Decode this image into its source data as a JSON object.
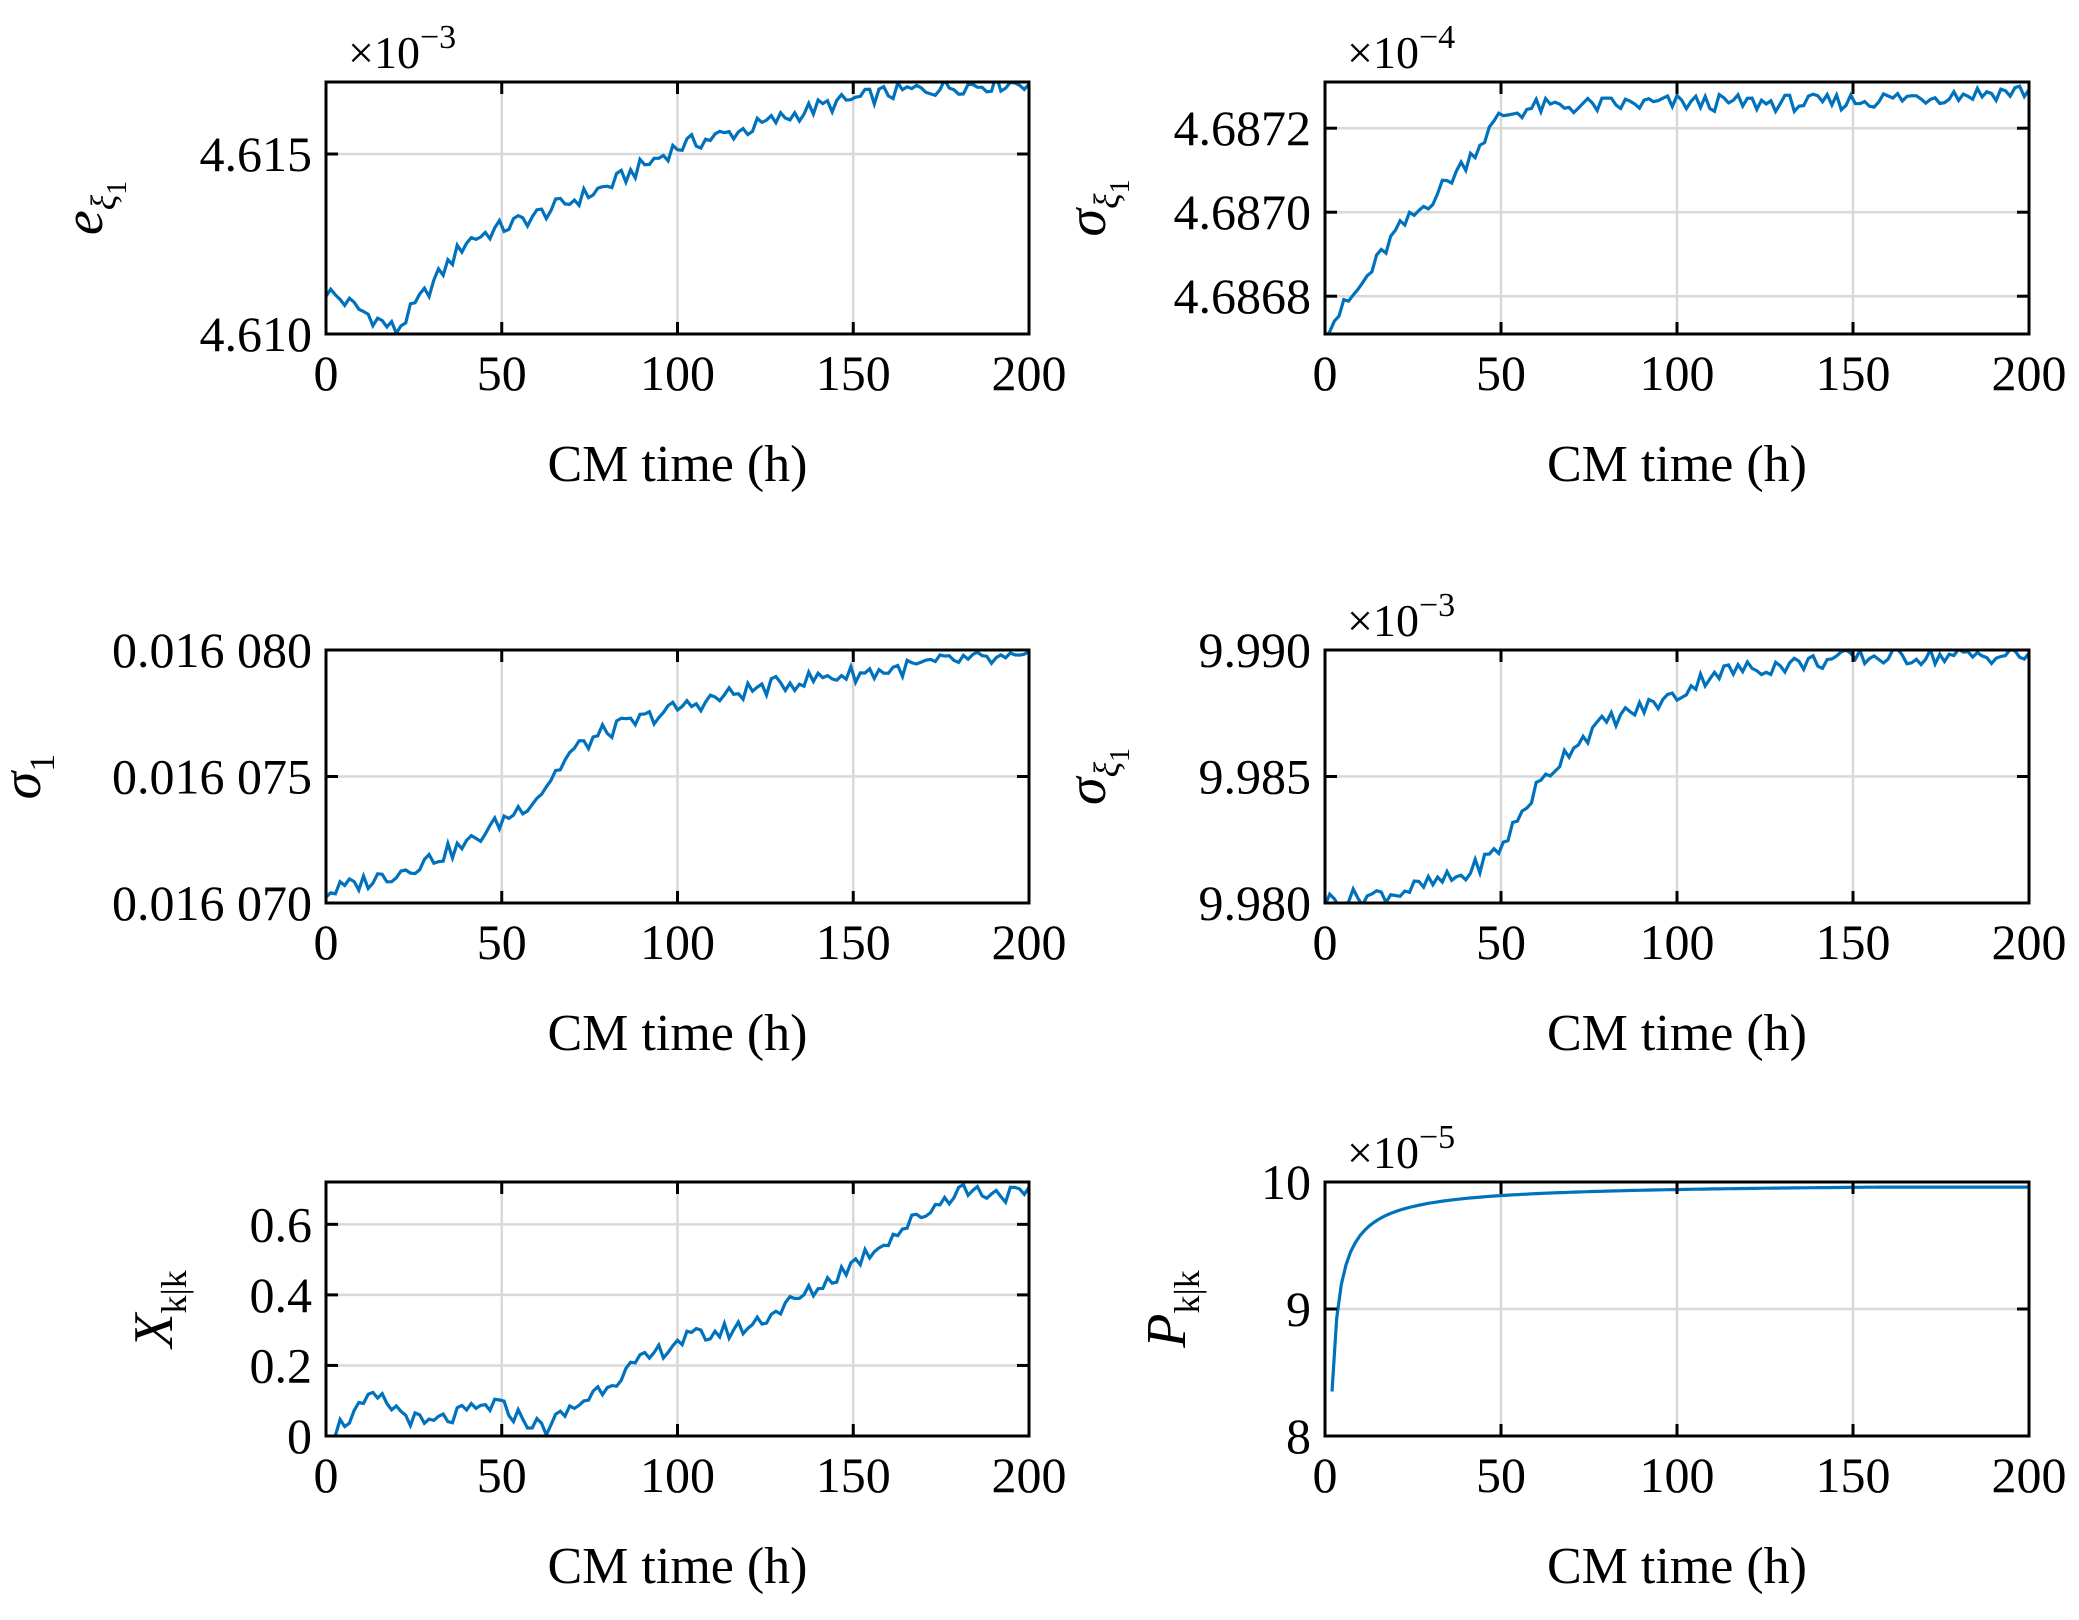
{
  "colors": {
    "line": "#0072BD",
    "grid": "#d9d9d9",
    "axis": "#000000"
  },
  "chart_data": [
    {
      "id": "p1",
      "type": "line",
      "row": 0,
      "col": 0,
      "ylabel": "e",
      "ylabel_sub": "ξ",
      "ylabel_subsub": "1",
      "ylabel_italic": true,
      "exponent_base": "×10",
      "exponent_power": "−3",
      "xlabel": "CM time (h)",
      "xlim": [
        0,
        200
      ],
      "ylim": [
        4.61,
        4.617
      ],
      "xticks": [
        0,
        50,
        100,
        150,
        200
      ],
      "xtick_labels": [
        "0",
        "50",
        "100",
        "150",
        "200"
      ],
      "yticks": [
        4.61,
        4.615
      ],
      "ytick_labels": [
        "4.610",
        "4.615"
      ],
      "ygrid": [
        4.615
      ],
      "grid": true,
      "series": [
        {
          "x": [
            0,
            20,
            40,
            60,
            80,
            100,
            120,
            140,
            160,
            180,
            200
          ],
          "y": [
            4.6112,
            4.6101,
            4.6126,
            4.6133,
            4.6141,
            4.6152,
            4.6157,
            4.6163,
            4.6167,
            4.6169,
            4.617
          ]
        }
      ]
    },
    {
      "id": "p2",
      "type": "line",
      "row": 0,
      "col": 1,
      "ylabel": "σ",
      "ylabel_sub": "ξ",
      "ylabel_subsub": "1",
      "ylabel_italic": true,
      "exponent_base": "×10",
      "exponent_power": "−4",
      "xlabel": "CM time (h)",
      "xlim": [
        0,
        200
      ],
      "ylim": [
        4.68671,
        4.68731
      ],
      "xticks": [
        0,
        50,
        100,
        150,
        200
      ],
      "xtick_labels": [
        "0",
        "50",
        "100",
        "150",
        "200"
      ],
      "yticks": [
        4.6868,
        4.687,
        4.6872
      ],
      "ytick_labels": [
        "4.6868",
        "4.6870",
        "4.6872"
      ],
      "ygrid": [
        4.6868,
        4.687,
        4.6872
      ],
      "grid": true,
      "series": [
        {
          "x": [
            0,
            10,
            20,
            30,
            40,
            50,
            60,
            100,
            140,
            200
          ],
          "y": [
            4.68672,
            4.68682,
            4.68695,
            4.68703,
            4.68712,
            4.68723,
            4.68725,
            4.68726,
            4.68726,
            4.68729
          ]
        }
      ]
    },
    {
      "id": "p3",
      "type": "line",
      "row": 1,
      "col": 0,
      "ylabel": "σ",
      "ylabel_sub": "1",
      "ylabel_subsub": "",
      "ylabel_italic": true,
      "exponent_base": "",
      "exponent_power": "",
      "xlabel": "CM time (h)",
      "xlim": [
        0,
        200
      ],
      "ylim": [
        0.01607,
        0.01608
      ],
      "xticks": [
        0,
        50,
        100,
        150,
        200
      ],
      "xtick_labels": [
        "0",
        "50",
        "100",
        "150",
        "200"
      ],
      "yticks": [
        0.01607,
        0.016075,
        0.01608
      ],
      "ytick_labels": [
        "0.016 070",
        "0.016 075",
        "0.016 080"
      ],
      "ygrid": [
        0.016075
      ],
      "grid": true,
      "series": [
        {
          "x": [
            0,
            20,
            40,
            60,
            70,
            80,
            100,
            120,
            140,
            160,
            180,
            200
          ],
          "y": [
            0.0160704,
            0.0160712,
            0.0160723,
            0.0160742,
            0.016076,
            0.0160768,
            0.0160777,
            0.0160784,
            0.0160789,
            0.0160792,
            0.0160796,
            0.0160796
          ]
        }
      ]
    },
    {
      "id": "p4",
      "type": "line",
      "row": 1,
      "col": 1,
      "ylabel": "σ",
      "ylabel_sub": "ξ",
      "ylabel_subsub": "1",
      "ylabel_italic": true,
      "exponent_base": "×10",
      "exponent_power": "−3",
      "xlabel": "CM time (h)",
      "xlim": [
        0,
        200
      ],
      "ylim": [
        9.98,
        9.99
      ],
      "xticks": [
        0,
        50,
        100,
        150,
        200
      ],
      "xtick_labels": [
        "0",
        "50",
        "100",
        "150",
        "200"
      ],
      "yticks": [
        9.98,
        9.985,
        9.99
      ],
      "ytick_labels": [
        "9.980",
        "9.985",
        "9.990"
      ],
      "ygrid": [
        9.98,
        9.985
      ],
      "grid": true,
      "series": [
        {
          "x": [
            0,
            20,
            40,
            50,
            60,
            70,
            80,
            100,
            110,
            130,
            150,
            200
          ],
          "y": [
            9.9801,
            9.9804,
            9.9811,
            9.9822,
            9.9845,
            9.9862,
            9.9872,
            9.9882,
            9.9891,
            9.9894,
            9.9897,
            9.9898
          ]
        }
      ]
    },
    {
      "id": "p5",
      "type": "line",
      "row": 2,
      "col": 0,
      "ylabel": "X",
      "ylabel_sub": "k|k",
      "ylabel_subsub": "",
      "ylabel_italic": true,
      "exponent_base": "",
      "exponent_power": "",
      "xlabel": "CM time (h)",
      "xlim": [
        0,
        200
      ],
      "ylim": [
        0,
        0.72
      ],
      "xticks": [
        0,
        50,
        100,
        150,
        200
      ],
      "xtick_labels": [
        "0",
        "50",
        "100",
        "150",
        "200"
      ],
      "yticks": [
        0,
        0.2,
        0.4,
        0.6
      ],
      "ytick_labels": [
        "0",
        "0.2",
        "0.4",
        "0.6"
      ],
      "ygrid": [
        0.2,
        0.4,
        0.6
      ],
      "grid": true,
      "series": [
        {
          "x": [
            0,
            14,
            28,
            48,
            62,
            80,
            100,
            120,
            140,
            160,
            180,
            200
          ],
          "y": [
            0.0,
            0.11,
            0.03,
            0.09,
            0.02,
            0.15,
            0.27,
            0.31,
            0.42,
            0.56,
            0.7,
            0.68
          ]
        }
      ]
    },
    {
      "id": "p6",
      "type": "line",
      "row": 2,
      "col": 1,
      "ylabel": "P",
      "ylabel_sub": "k|k",
      "ylabel_subsub": "",
      "ylabel_italic": true,
      "exponent_base": "×10",
      "exponent_power": "−5",
      "xlabel": "CM time (h)",
      "xlim": [
        0,
        200
      ],
      "ylim": [
        8,
        10
      ],
      "xticks": [
        0,
        50,
        100,
        150,
        200
      ],
      "xtick_labels": [
        "0",
        "50",
        "100",
        "150",
        "200"
      ],
      "yticks": [
        8,
        9,
        10
      ],
      "ytick_labels": [
        "8",
        "9",
        "10"
      ],
      "ygrid": [
        9
      ],
      "grid": true,
      "series": [
        {
          "x": [
            2,
            4,
            8,
            15,
            25,
            50,
            100,
            150,
            200
          ],
          "y": [
            8.35,
            9.05,
            9.5,
            9.72,
            9.82,
            9.9,
            9.95,
            9.96,
            9.96
          ]
        }
      ]
    }
  ]
}
